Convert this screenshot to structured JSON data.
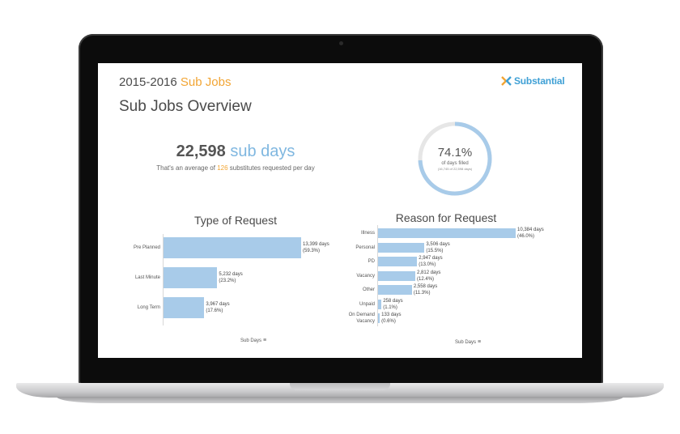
{
  "header": {
    "year": "2015-2016",
    "title_accent": "Sub Jobs",
    "logo_text": "Substantial"
  },
  "page_title": "Sub Jobs Overview",
  "kpi": {
    "value": "22,598",
    "unit": "sub days",
    "sub_prefix": "That's an average of",
    "sub_highlight": "126",
    "sub_suffix": "substitutes requested per day"
  },
  "donut": {
    "percent_text": "74.1%",
    "label": "of days filled",
    "detail": "(16,745 of 22,598 days)",
    "fraction": 0.741
  },
  "colors": {
    "bar": "#a8cbe9",
    "accent": "#f2a534",
    "brand": "#3fa0d5"
  },
  "chart_data": [
    {
      "type": "bar",
      "orientation": "horizontal",
      "title": "Type of Request",
      "xlabel": "Sub Days",
      "categories": [
        "Pre Planned",
        "Last Minute",
        "Long Term"
      ],
      "values": [
        13399,
        5232,
        3967
      ],
      "value_labels": [
        "13,399 days",
        "5,232 days",
        "3,967 days"
      ],
      "percent_labels": [
        "(59.3%)",
        "(23.2%)",
        "(17.6%)"
      ]
    },
    {
      "type": "bar",
      "orientation": "horizontal",
      "title": "Reason for Request",
      "xlabel": "Sub Days",
      "categories": [
        "Illness",
        "Personal",
        "PD",
        "Vacancy",
        "Other",
        "Unpaid",
        "On Demand Vacancy"
      ],
      "category_lines": [
        [
          "Illness"
        ],
        [
          "Personal"
        ],
        [
          "PD"
        ],
        [
          "Vacancy"
        ],
        [
          "Other"
        ],
        [
          "Unpaid"
        ],
        [
          "On Demand",
          "Vacancy"
        ]
      ],
      "values": [
        10384,
        3506,
        2947,
        2812,
        2558,
        258,
        133
      ],
      "value_labels": [
        "10,384 days",
        "3,506 days",
        "2,947 days",
        "2,812 days",
        "2,558 days",
        "258 days",
        "133 days"
      ],
      "percent_labels": [
        "(46.0%)",
        "(15.5%)",
        "(13.0%)",
        "(12.4%)",
        "(11.3%)",
        "(1.1%)",
        "(0.6%)"
      ]
    }
  ]
}
